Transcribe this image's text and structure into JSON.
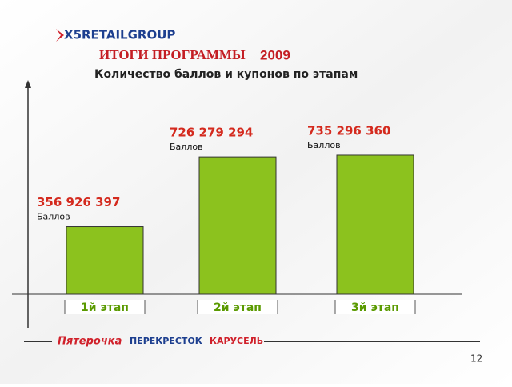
{
  "logo": "X5RETAILGROUP",
  "chart_data": {
    "type": "bar",
    "title": "ИТОГИ ПРОГРАММЫ",
    "title_year": "2009",
    "subtitle": "Количество баллов и купонов по этапам",
    "categories": [
      "1й этап",
      "2й этап",
      "3й этап"
    ],
    "values": [
      356926397,
      726279294,
      735296360
    ],
    "value_labels": [
      "356 926 397",
      "726 279 294",
      "735 296 360"
    ],
    "value_units": [
      "Баллов",
      "Баллов",
      "Баллов"
    ],
    "color": "#8cc21e",
    "ylim": [
      0,
      900000000
    ]
  },
  "footer_logos": [
    "Пятерочка",
    "ПЕРЕКРЕСТОК",
    "КАРУСЕЛЬ"
  ],
  "page_number": "12"
}
